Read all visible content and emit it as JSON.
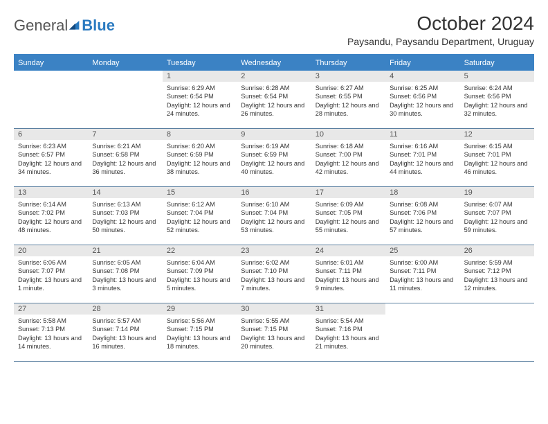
{
  "brand": {
    "part1": "General",
    "part2": "Blue"
  },
  "title": "October 2024",
  "location": "Paysandu, Paysandu Department, Uruguay",
  "colors": {
    "header_bg": "#3b82c4",
    "header_text": "#ffffff",
    "daynum_bg": "#e8e8e8",
    "cell_border": "#5a7fa0",
    "brand_blue": "#2a7ac0",
    "text": "#333333"
  },
  "weekdays": [
    "Sunday",
    "Monday",
    "Tuesday",
    "Wednesday",
    "Thursday",
    "Friday",
    "Saturday"
  ],
  "start_weekday_index": 2,
  "days": [
    {
      "n": 1,
      "sunrise": "6:29 AM",
      "sunset": "6:54 PM",
      "daylight": "12 hours and 24 minutes."
    },
    {
      "n": 2,
      "sunrise": "6:28 AM",
      "sunset": "6:54 PM",
      "daylight": "12 hours and 26 minutes."
    },
    {
      "n": 3,
      "sunrise": "6:27 AM",
      "sunset": "6:55 PM",
      "daylight": "12 hours and 28 minutes."
    },
    {
      "n": 4,
      "sunrise": "6:25 AM",
      "sunset": "6:56 PM",
      "daylight": "12 hours and 30 minutes."
    },
    {
      "n": 5,
      "sunrise": "6:24 AM",
      "sunset": "6:56 PM",
      "daylight": "12 hours and 32 minutes."
    },
    {
      "n": 6,
      "sunrise": "6:23 AM",
      "sunset": "6:57 PM",
      "daylight": "12 hours and 34 minutes."
    },
    {
      "n": 7,
      "sunrise": "6:21 AM",
      "sunset": "6:58 PM",
      "daylight": "12 hours and 36 minutes."
    },
    {
      "n": 8,
      "sunrise": "6:20 AM",
      "sunset": "6:59 PM",
      "daylight": "12 hours and 38 minutes."
    },
    {
      "n": 9,
      "sunrise": "6:19 AM",
      "sunset": "6:59 PM",
      "daylight": "12 hours and 40 minutes."
    },
    {
      "n": 10,
      "sunrise": "6:18 AM",
      "sunset": "7:00 PM",
      "daylight": "12 hours and 42 minutes."
    },
    {
      "n": 11,
      "sunrise": "6:16 AM",
      "sunset": "7:01 PM",
      "daylight": "12 hours and 44 minutes."
    },
    {
      "n": 12,
      "sunrise": "6:15 AM",
      "sunset": "7:01 PM",
      "daylight": "12 hours and 46 minutes."
    },
    {
      "n": 13,
      "sunrise": "6:14 AM",
      "sunset": "7:02 PM",
      "daylight": "12 hours and 48 minutes."
    },
    {
      "n": 14,
      "sunrise": "6:13 AM",
      "sunset": "7:03 PM",
      "daylight": "12 hours and 50 minutes."
    },
    {
      "n": 15,
      "sunrise": "6:12 AM",
      "sunset": "7:04 PM",
      "daylight": "12 hours and 52 minutes."
    },
    {
      "n": 16,
      "sunrise": "6:10 AM",
      "sunset": "7:04 PM",
      "daylight": "12 hours and 53 minutes."
    },
    {
      "n": 17,
      "sunrise": "6:09 AM",
      "sunset": "7:05 PM",
      "daylight": "12 hours and 55 minutes."
    },
    {
      "n": 18,
      "sunrise": "6:08 AM",
      "sunset": "7:06 PM",
      "daylight": "12 hours and 57 minutes."
    },
    {
      "n": 19,
      "sunrise": "6:07 AM",
      "sunset": "7:07 PM",
      "daylight": "12 hours and 59 minutes."
    },
    {
      "n": 20,
      "sunrise": "6:06 AM",
      "sunset": "7:07 PM",
      "daylight": "13 hours and 1 minute."
    },
    {
      "n": 21,
      "sunrise": "6:05 AM",
      "sunset": "7:08 PM",
      "daylight": "13 hours and 3 minutes."
    },
    {
      "n": 22,
      "sunrise": "6:04 AM",
      "sunset": "7:09 PM",
      "daylight": "13 hours and 5 minutes."
    },
    {
      "n": 23,
      "sunrise": "6:02 AM",
      "sunset": "7:10 PM",
      "daylight": "13 hours and 7 minutes."
    },
    {
      "n": 24,
      "sunrise": "6:01 AM",
      "sunset": "7:11 PM",
      "daylight": "13 hours and 9 minutes."
    },
    {
      "n": 25,
      "sunrise": "6:00 AM",
      "sunset": "7:11 PM",
      "daylight": "13 hours and 11 minutes."
    },
    {
      "n": 26,
      "sunrise": "5:59 AM",
      "sunset": "7:12 PM",
      "daylight": "13 hours and 12 minutes."
    },
    {
      "n": 27,
      "sunrise": "5:58 AM",
      "sunset": "7:13 PM",
      "daylight": "13 hours and 14 minutes."
    },
    {
      "n": 28,
      "sunrise": "5:57 AM",
      "sunset": "7:14 PM",
      "daylight": "13 hours and 16 minutes."
    },
    {
      "n": 29,
      "sunrise": "5:56 AM",
      "sunset": "7:15 PM",
      "daylight": "13 hours and 18 minutes."
    },
    {
      "n": 30,
      "sunrise": "5:55 AM",
      "sunset": "7:15 PM",
      "daylight": "13 hours and 20 minutes."
    },
    {
      "n": 31,
      "sunrise": "5:54 AM",
      "sunset": "7:16 PM",
      "daylight": "13 hours and 21 minutes."
    }
  ],
  "labels": {
    "sunrise": "Sunrise:",
    "sunset": "Sunset:",
    "daylight": "Daylight:"
  }
}
